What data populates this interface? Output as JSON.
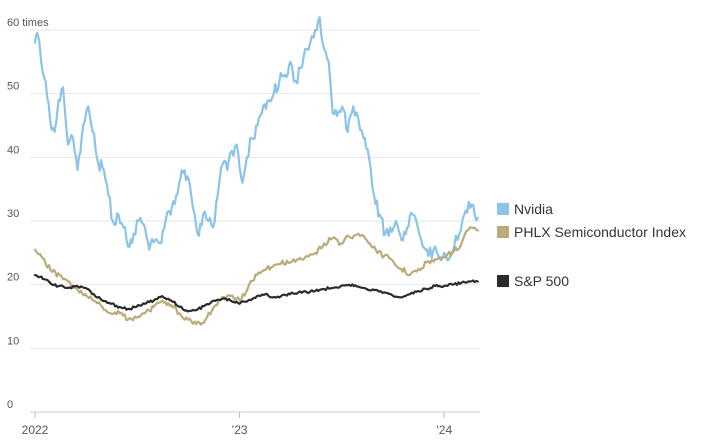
{
  "chart_data": {
    "type": "line",
    "title": "",
    "xlabel": "",
    "ylabel": "",
    "y_unit": "times",
    "ylim": [
      0,
      60
    ],
    "yticks": [
      0,
      10,
      20,
      30,
      40,
      50,
      60
    ],
    "ytick_labels": [
      "0",
      "10",
      "20",
      "30",
      "40",
      "50",
      "60 times"
    ],
    "xlim": [
      "2022-01-01",
      "2024-03-05"
    ],
    "xticks": [
      {
        "date": "2022-01-01",
        "label": "2022"
      },
      {
        "date": "2023-01-01",
        "label": "’23"
      },
      {
        "date": "2024-01-01",
        "label": "’24"
      }
    ],
    "grid": true,
    "legend_position": "right",
    "series": [
      {
        "name": "Nvidia",
        "color": "#8cc4e8",
        "points": [
          [
            "2022-01-01",
            58
          ],
          [
            "2022-01-05",
            59.5
          ],
          [
            "2022-01-12",
            55
          ],
          [
            "2022-01-20",
            52
          ],
          [
            "2022-01-28",
            46
          ],
          [
            "2022-02-05",
            44
          ],
          [
            "2022-02-12",
            49
          ],
          [
            "2022-02-20",
            51
          ],
          [
            "2022-03-01",
            42
          ],
          [
            "2022-03-10",
            43
          ],
          [
            "2022-03-18",
            38
          ],
          [
            "2022-03-28",
            45
          ],
          [
            "2022-04-06",
            48
          ],
          [
            "2022-04-14",
            44
          ],
          [
            "2022-04-24",
            39
          ],
          [
            "2022-05-04",
            38
          ],
          [
            "2022-05-12",
            34
          ],
          [
            "2022-05-20",
            30
          ],
          [
            "2022-05-30",
            31
          ],
          [
            "2022-06-08",
            29
          ],
          [
            "2022-06-16",
            26
          ],
          [
            "2022-06-26",
            28
          ],
          [
            "2022-07-05",
            30
          ],
          [
            "2022-07-14",
            29.5
          ],
          [
            "2022-07-24",
            25.5
          ],
          [
            "2022-08-03",
            27
          ],
          [
            "2022-08-12",
            26.5
          ],
          [
            "2022-08-22",
            30
          ],
          [
            "2022-08-31",
            31
          ],
          [
            "2022-09-10",
            34
          ],
          [
            "2022-09-20",
            38
          ],
          [
            "2022-09-30",
            37
          ],
          [
            "2022-10-10",
            32
          ],
          [
            "2022-10-18",
            28
          ],
          [
            "2022-10-28",
            31
          ],
          [
            "2022-11-06",
            30
          ],
          [
            "2022-11-15",
            29
          ],
          [
            "2022-11-23",
            34
          ],
          [
            "2022-12-02",
            39
          ],
          [
            "2022-12-10",
            38
          ],
          [
            "2022-12-18",
            41
          ],
          [
            "2022-12-27",
            42
          ],
          [
            "2023-01-06",
            36
          ],
          [
            "2023-01-14",
            40
          ],
          [
            "2023-01-23",
            43
          ],
          [
            "2023-02-02",
            45
          ],
          [
            "2023-02-12",
            48
          ],
          [
            "2023-02-22",
            49
          ],
          [
            "2023-03-03",
            50
          ],
          [
            "2023-03-13",
            52
          ],
          [
            "2023-03-23",
            53
          ],
          [
            "2023-04-02",
            55
          ],
          [
            "2023-04-11",
            52
          ],
          [
            "2023-04-20",
            54
          ],
          [
            "2023-04-28",
            57
          ],
          [
            "2023-05-07",
            58
          ],
          [
            "2023-05-16",
            60
          ],
          [
            "2023-05-24",
            62
          ],
          [
            "2023-06-01",
            57
          ],
          [
            "2023-06-09",
            55
          ],
          [
            "2023-06-16",
            47
          ],
          [
            "2023-06-24",
            46.5
          ],
          [
            "2023-07-03",
            48
          ],
          [
            "2023-07-13",
            44
          ],
          [
            "2023-07-23",
            48
          ],
          [
            "2023-08-01",
            46
          ],
          [
            "2023-08-10",
            43
          ],
          [
            "2023-08-20",
            40
          ],
          [
            "2023-08-29",
            34
          ],
          [
            "2023-09-08",
            31
          ],
          [
            "2023-09-18",
            28
          ],
          [
            "2023-09-27",
            29
          ],
          [
            "2023-10-07",
            30
          ],
          [
            "2023-10-17",
            27
          ],
          [
            "2023-10-27",
            29
          ],
          [
            "2023-11-06",
            31
          ],
          [
            "2023-11-15",
            29
          ],
          [
            "2023-11-24",
            26
          ],
          [
            "2023-12-04",
            24.5
          ],
          [
            "2023-12-13",
            25.5
          ],
          [
            "2023-12-22",
            24.5
          ],
          [
            "2024-01-01",
            25
          ],
          [
            "2024-01-10",
            24
          ],
          [
            "2024-01-19",
            26
          ],
          [
            "2024-01-28",
            28
          ],
          [
            "2024-02-06",
            31
          ],
          [
            "2024-02-14",
            33
          ],
          [
            "2024-02-22",
            32.5
          ],
          [
            "2024-03-01",
            30.5
          ]
        ]
      },
      {
        "name": "PHLX Semiconductor Index",
        "color": "#b8ad7a",
        "points": [
          [
            "2022-01-01",
            25.5
          ],
          [
            "2022-01-10",
            24.8
          ],
          [
            "2022-01-20",
            23.3
          ],
          [
            "2022-02-01",
            22
          ],
          [
            "2022-02-14",
            21.5
          ],
          [
            "2022-03-01",
            20.5
          ],
          [
            "2022-03-16",
            19.5
          ],
          [
            "2022-04-01",
            18.5
          ],
          [
            "2022-04-16",
            17.5
          ],
          [
            "2022-05-01",
            16.5
          ],
          [
            "2022-05-16",
            15.5
          ],
          [
            "2022-06-01",
            15.5
          ],
          [
            "2022-06-16",
            14.5
          ],
          [
            "2022-07-01",
            14.8
          ],
          [
            "2022-07-16",
            15.5
          ],
          [
            "2022-08-01",
            16.5
          ],
          [
            "2022-08-16",
            17.5
          ],
          [
            "2022-09-01",
            16.8
          ],
          [
            "2022-09-16",
            15.5
          ],
          [
            "2022-10-01",
            14.5
          ],
          [
            "2022-10-16",
            13.8
          ],
          [
            "2022-11-01",
            14.5
          ],
          [
            "2022-11-16",
            16.5
          ],
          [
            "2022-12-01",
            18
          ],
          [
            "2022-12-16",
            18.2
          ],
          [
            "2023-01-01",
            17.5
          ],
          [
            "2023-01-16",
            19.5
          ],
          [
            "2023-02-01",
            21.5
          ],
          [
            "2023-02-16",
            22.3
          ],
          [
            "2023-03-01",
            22.8
          ],
          [
            "2023-03-16",
            23.3
          ],
          [
            "2023-04-01",
            23.5
          ],
          [
            "2023-04-16",
            24
          ],
          [
            "2023-05-01",
            24.5
          ],
          [
            "2023-05-16",
            25
          ],
          [
            "2023-06-01",
            26.5
          ],
          [
            "2023-06-16",
            27.3
          ],
          [
            "2023-07-01",
            26.5
          ],
          [
            "2023-07-16",
            27.5
          ],
          [
            "2023-08-01",
            28
          ],
          [
            "2023-08-16",
            27
          ],
          [
            "2023-09-01",
            25.5
          ],
          [
            "2023-09-16",
            24.5
          ],
          [
            "2023-10-01",
            23.8
          ],
          [
            "2023-10-16",
            22.5
          ],
          [
            "2023-11-01",
            21.5
          ],
          [
            "2023-11-16",
            22.5
          ],
          [
            "2023-12-01",
            23.5
          ],
          [
            "2023-12-16",
            24
          ],
          [
            "2024-01-01",
            24.3
          ],
          [
            "2024-01-16",
            25
          ],
          [
            "2024-02-01",
            26.5
          ],
          [
            "2024-02-16",
            29
          ],
          [
            "2024-03-01",
            28.5
          ]
        ]
      },
      {
        "name": "S&P 500",
        "color": "#2b2b2b",
        "points": [
          [
            "2022-01-01",
            21.5
          ],
          [
            "2022-01-10",
            21.2
          ],
          [
            "2022-01-20",
            20.8
          ],
          [
            "2022-02-01",
            20
          ],
          [
            "2022-02-14",
            19.8
          ],
          [
            "2022-03-01",
            19.5
          ],
          [
            "2022-03-16",
            19.8
          ],
          [
            "2022-04-01",
            19.5
          ],
          [
            "2022-04-16",
            18.5
          ],
          [
            "2022-05-01",
            17.5
          ],
          [
            "2022-05-16",
            17
          ],
          [
            "2022-06-01",
            16.5
          ],
          [
            "2022-06-16",
            16.2
          ],
          [
            "2022-07-01",
            16.5
          ],
          [
            "2022-07-16",
            17
          ],
          [
            "2022-08-01",
            17.5
          ],
          [
            "2022-08-16",
            18.2
          ],
          [
            "2022-09-01",
            17.5
          ],
          [
            "2022-09-16",
            16.5
          ],
          [
            "2022-10-01",
            15.8
          ],
          [
            "2022-10-16",
            16
          ],
          [
            "2022-11-01",
            16.8
          ],
          [
            "2022-11-16",
            17.5
          ],
          [
            "2022-12-01",
            17.8
          ],
          [
            "2022-12-16",
            17.5
          ],
          [
            "2023-01-01",
            17
          ],
          [
            "2023-01-16",
            17.5
          ],
          [
            "2023-02-01",
            18.2
          ],
          [
            "2023-02-16",
            18.5
          ],
          [
            "2023-03-01",
            18
          ],
          [
            "2023-03-16",
            18.2
          ],
          [
            "2023-04-01",
            18.5
          ],
          [
            "2023-04-16",
            18.8
          ],
          [
            "2023-05-01",
            18.8
          ],
          [
            "2023-05-16",
            19
          ],
          [
            "2023-06-01",
            19.3
          ],
          [
            "2023-06-16",
            19.5
          ],
          [
            "2023-07-01",
            19.8
          ],
          [
            "2023-07-16",
            20
          ],
          [
            "2023-08-01",
            19.7
          ],
          [
            "2023-08-16",
            19.3
          ],
          [
            "2023-09-01",
            19.2
          ],
          [
            "2023-09-16",
            18.8
          ],
          [
            "2023-10-01",
            18.3
          ],
          [
            "2023-10-16",
            18
          ],
          [
            "2023-11-01",
            18.5
          ],
          [
            "2023-11-16",
            19
          ],
          [
            "2023-12-01",
            19.3
          ],
          [
            "2023-12-16",
            19.8
          ],
          [
            "2024-01-01",
            19.8
          ],
          [
            "2024-01-16",
            20
          ],
          [
            "2024-02-01",
            20.3
          ],
          [
            "2024-02-16",
            20.5
          ],
          [
            "2024-03-01",
            20.5
          ]
        ]
      }
    ]
  }
}
